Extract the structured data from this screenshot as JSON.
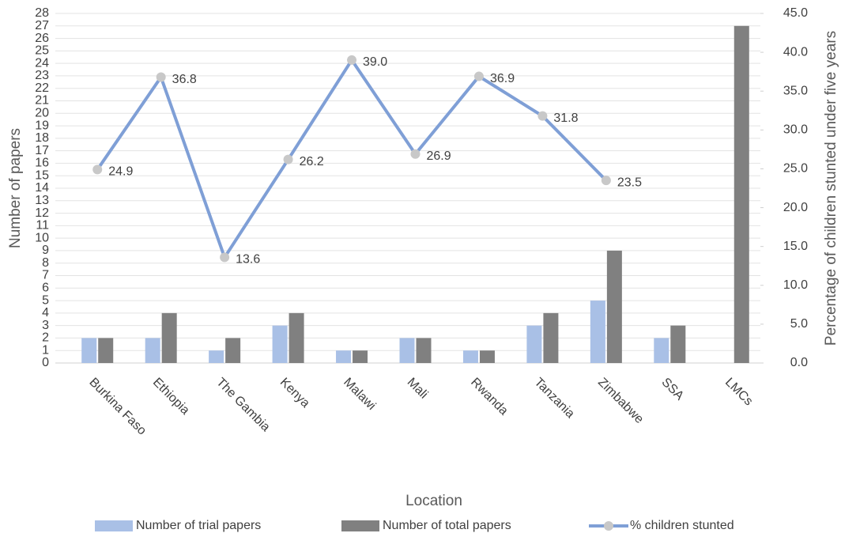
{
  "chart_data": {
    "type": "bar",
    "x_label": "Location",
    "y_label": "Number of papers",
    "y2_label": "Percentage of children stunted under five years",
    "categories": [
      "Burkina Faso",
      "Ethiopia",
      "The Gambia",
      "Kenya",
      "Malawi",
      "Mali",
      "Rwanda",
      "Tanzania",
      "Zimbabwe",
      "SSA",
      "LMCs"
    ],
    "series": [
      {
        "name": "Number of trial papers",
        "type": "bar",
        "color": "#a9c0e6",
        "values": [
          2,
          2,
          1,
          3,
          1,
          2,
          1,
          3,
          5,
          2,
          null
        ]
      },
      {
        "name": "Number of total papers",
        "type": "bar",
        "color": "#808080",
        "values": [
          2,
          4,
          2,
          4,
          1,
          2,
          1,
          4,
          9,
          3,
          27
        ]
      },
      {
        "name": "% children stunted",
        "type": "line",
        "axis": "y2",
        "color": "#7f9fd6",
        "marker_color": "#c8c8c8",
        "values": [
          24.9,
          36.8,
          13.6,
          26.2,
          39,
          26.9,
          36.9,
          31.8,
          23.5,
          null,
          null
        ],
        "value_labels": [
          "24.9",
          "36.8",
          "13.6",
          "26.2",
          "39.0",
          "26.9",
          "36.9",
          "31.8",
          "23.5",
          null,
          null
        ]
      }
    ],
    "ylim": [
      0,
      28
    ],
    "yticks": [
      0,
      1,
      2,
      3,
      4,
      5,
      6,
      7,
      8,
      9,
      10,
      11,
      12,
      13,
      14,
      15,
      16,
      17,
      18,
      19,
      20,
      21,
      22,
      23,
      24,
      25,
      26,
      27,
      28
    ],
    "y2lim": [
      0,
      45
    ],
    "y2ticks": [
      {
        "value": 0,
        "label": "0.0"
      },
      {
        "value": 5,
        "label": "5.0"
      },
      {
        "value": 10,
        "label": "10.0"
      },
      {
        "value": 15,
        "label": "15.0"
      },
      {
        "value": 20,
        "label": "20.0"
      },
      {
        "value": 25,
        "label": "25.0"
      },
      {
        "value": 30,
        "label": "30.0"
      },
      {
        "value": 35,
        "label": "35.0"
      },
      {
        "value": 40,
        "label": "40.0"
      },
      {
        "value": 45,
        "label": "45.0"
      }
    ],
    "grid": true,
    "legend": "bottom"
  }
}
